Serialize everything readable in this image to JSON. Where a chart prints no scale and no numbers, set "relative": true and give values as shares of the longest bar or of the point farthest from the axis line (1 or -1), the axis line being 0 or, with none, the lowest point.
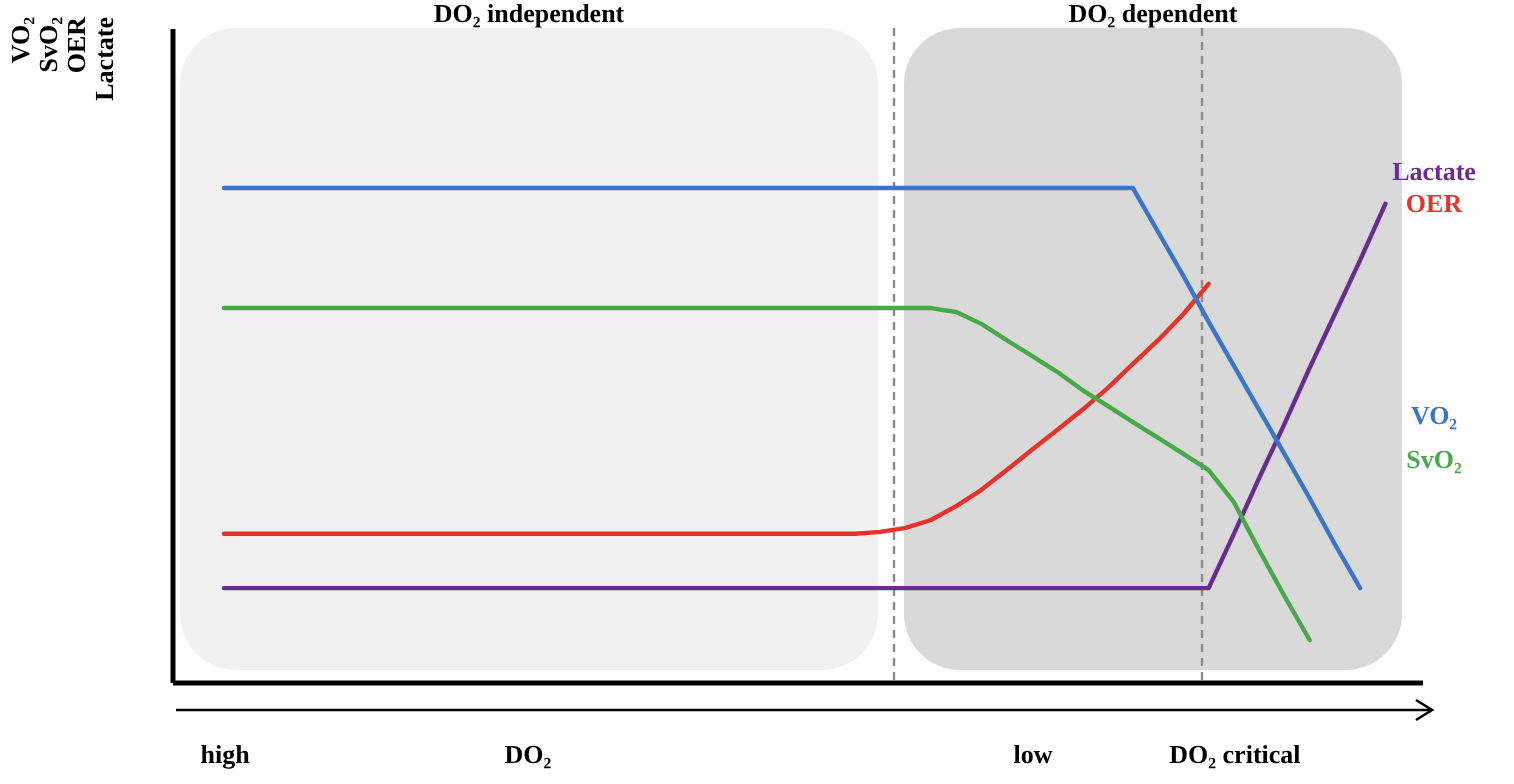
{
  "chart_data": {
    "type": "line",
    "relative": true,
    "ylabel": "VO₂\nSvO₂\nOER\nLactate",
    "categories": [
      "high",
      null,
      null,
      null,
      null,
      null,
      null,
      null,
      null,
      null,
      null,
      null,
      "DO₂",
      null,
      null,
      null,
      null,
      null,
      null,
      null,
      null,
      null,
      null,
      null,
      null,
      null,
      null,
      null,
      null,
      null,
      null,
      null,
      "low",
      null,
      null,
      null,
      null,
      null,
      null,
      null,
      "DO₂ critical",
      null,
      null,
      null,
      null,
      null,
      null,
      null
    ],
    "grid": false,
    "marker": "none",
    "line_style": "solid",
    "series": [
      {
        "name": "Lactate",
        "color": "#6a2c91",
        "values": [
          0.19,
          0.19,
          0.19,
          0.19,
          0.19,
          0.19,
          0.19,
          0.19,
          0.19,
          0.19,
          0.19,
          0.19,
          0.19,
          0.19,
          0.19,
          0.19,
          0.19,
          0.19,
          0.19,
          0.19,
          0.19,
          0.19,
          0.19,
          0.19,
          0.19,
          0.19,
          0.19,
          0.19,
          0.19,
          0.19,
          0.19,
          0.19,
          0.19,
          0.19,
          0.19,
          0.19,
          0.19,
          0.19,
          0.19,
          0.19,
          0.3,
          0.413,
          0.522,
          0.636,
          0.745,
          0.854,
          0.968,
          null
        ]
      },
      {
        "name": "OER",
        "color": "#e8312b",
        "values": [
          0.3,
          0.3,
          0.3,
          0.3,
          0.3,
          0.3,
          0.3,
          0.3,
          0.3,
          0.3,
          0.3,
          0.3,
          0.3,
          0.3,
          0.3,
          0.3,
          0.3,
          0.3,
          0.3,
          0.3,
          0.3,
          0.3,
          0.3,
          0.3,
          0.3,
          0.3,
          0.304,
          0.312,
          0.328,
          0.356,
          0.389,
          0.429,
          0.47,
          0.51,
          0.551,
          0.595,
          0.644,
          0.692,
          0.745,
          0.806,
          null,
          null,
          null,
          null,
          null,
          null,
          null,
          null
        ]
      },
      {
        "name": "VO₂",
        "color": "#3b75c8",
        "values": [
          1,
          1,
          1,
          1,
          1,
          1,
          1,
          1,
          1,
          1,
          1,
          1,
          1,
          1,
          1,
          1,
          1,
          1,
          1,
          1,
          1,
          1,
          1,
          1,
          1,
          1,
          1,
          1,
          1,
          1,
          1,
          1,
          1,
          1,
          1,
          1,
          1,
          0.911,
          0.822,
          0.729,
          0.64,
          0.551,
          0.462,
          0.372,
          0.279,
          0.19,
          null,
          null
        ]
      },
      {
        "name": "SvO₂",
        "color": "#47a947",
        "values": [
          0.757,
          0.757,
          0.757,
          0.757,
          0.757,
          0.757,
          0.757,
          0.757,
          0.757,
          0.757,
          0.757,
          0.757,
          0.757,
          0.757,
          0.757,
          0.757,
          0.757,
          0.757,
          0.757,
          0.757,
          0.757,
          0.757,
          0.757,
          0.757,
          0.757,
          0.757,
          0.757,
          0.757,
          0.757,
          0.749,
          0.725,
          0.692,
          0.66,
          0.628,
          0.591,
          0.559,
          0.526,
          0.494,
          0.462,
          0.429,
          0.364,
          0.267,
          0.174,
          0.085,
          null,
          null,
          null,
          null
        ]
      }
    ],
    "annotations": [
      "DO₂ independent",
      "DO₂ dependent"
    ]
  }
}
